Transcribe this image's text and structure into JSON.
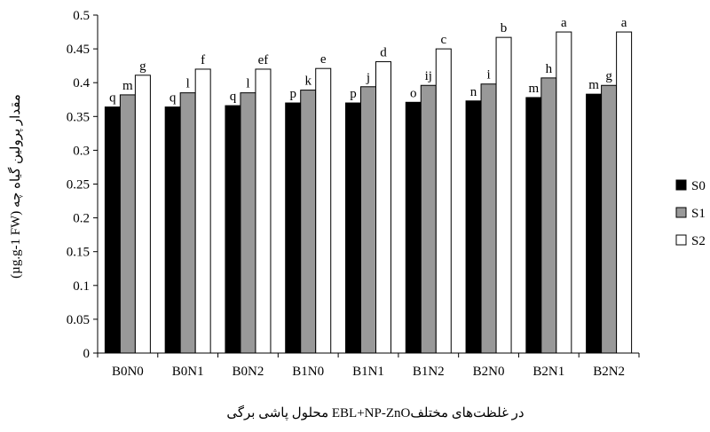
{
  "chart_data": {
    "type": "bar",
    "title": "",
    "xlabel": "محلول پاشی برگی EBL+NP-ZnOدر غلظت‌های مختلف",
    "ylabel": "مقدار پرولین گیاه چه (µg.g-1 FW)",
    "ylim": [
      0,
      0.5
    ],
    "yticks": [
      "0",
      "0.05",
      "0.1",
      "0.15",
      "0.2",
      "0.25",
      "0.3",
      "0.35",
      "0.4",
      "0.45",
      "0.5"
    ],
    "grid": false,
    "legend_position": "right",
    "categories": [
      "B0N0",
      "B0N1",
      "B0N2",
      "B1N0",
      "B1N1",
      "B1N2",
      "B2N0",
      "B2N1",
      "B2N2"
    ],
    "series": [
      {
        "name": "S0",
        "color": "#000000",
        "values": [
          0.364,
          0.364,
          0.366,
          0.37,
          0.37,
          0.371,
          0.373,
          0.378,
          0.383
        ],
        "labels": [
          "q",
          "q",
          "q",
          "p",
          "p",
          "o",
          "n",
          "m",
          "m"
        ]
      },
      {
        "name": "S1",
        "color": "#999999",
        "values": [
          0.382,
          0.385,
          0.385,
          0.389,
          0.394,
          0.396,
          0.398,
          0.407,
          0.396
        ],
        "labels": [
          "m",
          "l",
          "l",
          "k",
          "j",
          "ij",
          "i",
          "h",
          "g"
        ]
      },
      {
        "name": "S2",
        "color": "#ffffff",
        "values": [
          0.411,
          0.42,
          0.42,
          0.421,
          0.431,
          0.45,
          0.467,
          0.475,
          0.475
        ],
        "labels": [
          "g",
          "f",
          "ef",
          "e",
          "d",
          "c",
          "b",
          "a",
          "a"
        ]
      }
    ]
  }
}
